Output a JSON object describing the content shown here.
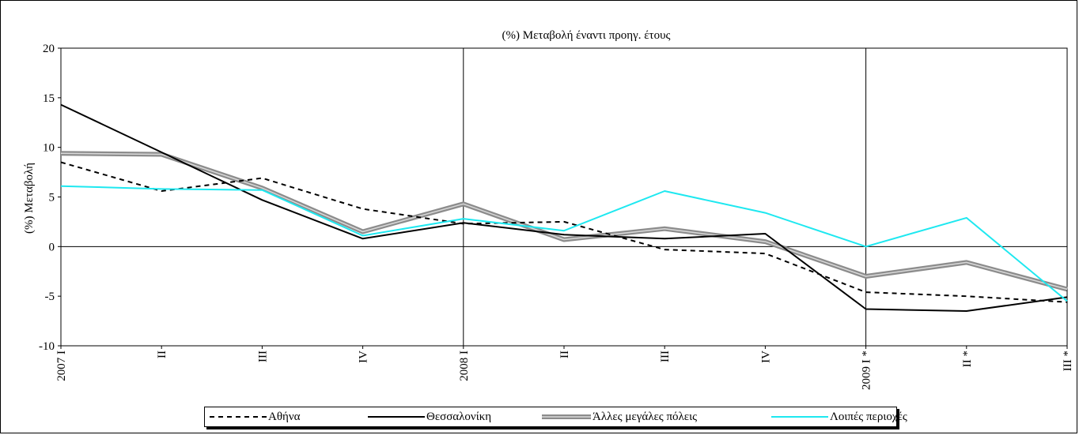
{
  "chart_data": {
    "type": "line",
    "title": "(%) Μεταβολή έναντι προηγ. έτους",
    "xlabel": "",
    "ylabel": "(%) Μεταβολή",
    "ylim": [
      -10,
      20
    ],
    "yticks": [
      -10,
      -5,
      0,
      5,
      10,
      15,
      20
    ],
    "categories": [
      "2007 I",
      "II",
      "III",
      "IV",
      "2008 I",
      "II",
      "III",
      "IV",
      "2009 I *",
      "II *",
      "III *"
    ],
    "grid": "vertical lines at year boundaries",
    "legend_position": "bottom",
    "series": [
      {
        "name": "Αθήνα",
        "color": "#000000",
        "style": "dashed",
        "values": [
          8.5,
          5.6,
          6.9,
          3.8,
          2.3,
          2.5,
          -0.3,
          -0.7,
          -4.6,
          -5.0,
          -5.6
        ]
      },
      {
        "name": "Θεσσαλονίκη",
        "color": "#000000",
        "style": "solid",
        "values": [
          14.3,
          9.5,
          4.7,
          0.8,
          2.4,
          1.2,
          0.8,
          1.3,
          -6.3,
          -6.5,
          -5.1
        ]
      },
      {
        "name": "Άλλες μεγάλες πόλεις",
        "color": "#8c8c8c",
        "style": "thick-double",
        "values": [
          9.4,
          9.3,
          5.9,
          1.5,
          4.3,
          0.7,
          1.8,
          0.5,
          -3.0,
          -1.6,
          -4.3
        ]
      },
      {
        "name": "Λοιπές περιοχές",
        "color": "#1ee8f0",
        "style": "solid",
        "values": [
          6.1,
          5.8,
          5.7,
          1.1,
          2.8,
          1.6,
          5.6,
          3.4,
          0.0,
          2.9,
          -5.5
        ]
      }
    ]
  }
}
